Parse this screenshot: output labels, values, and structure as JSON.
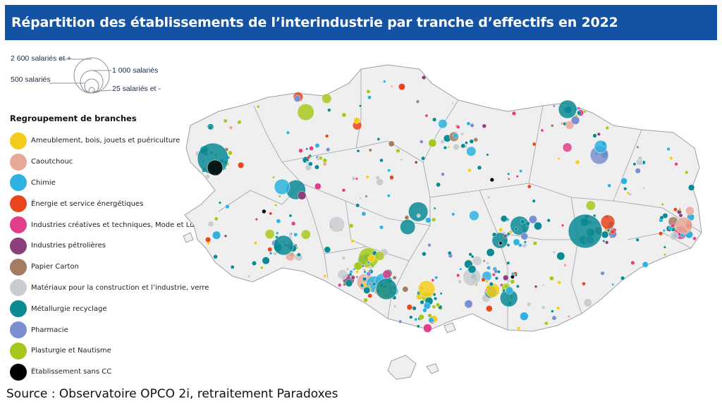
{
  "title": "Répartition des établissements de l’interindustrie par tranche d’effectifs en 2022",
  "size_legend": {
    "labels": [
      "2 600 salariés et +",
      "1 000 salariés",
      "500 salariés",
      "25 salariés et -"
    ]
  },
  "legend": {
    "heading": "Regroupement de branches",
    "items": [
      {
        "label": "Ameublement, bois, jouets et puériculture",
        "color": "#f5cc1c"
      },
      {
        "label": "Caoutchouc",
        "color": "#e8a898"
      },
      {
        "label": "Chimie",
        "color": "#2fb2df"
      },
      {
        "label": "Énergie et service énergétiques",
        "color": "#e8461c"
      },
      {
        "label": "Industries créatives et techniques, Mode et Luxe",
        "color": "#e23f8a"
      },
      {
        "label": "Industries pétrolières",
        "color": "#8c3f7a"
      },
      {
        "label": "Papier Carton",
        "color": "#a57c62"
      },
      {
        "label": "Matériaux pour la construction et l’industrie, verre",
        "color": "#c9cdd2"
      },
      {
        "label": "Métallurgie recyclage",
        "color": "#0b8a94"
      },
      {
        "label": "Pharmacie",
        "color": "#7b8fd0"
      },
      {
        "label": "Plasturgie et Nautisme",
        "color": "#a6c81c"
      },
      {
        "label": "Établissement sans CC",
        "color": "#000000"
      }
    ]
  },
  "source": "Source : Observatoire OPCO 2i, retraitement Paradoxes"
}
